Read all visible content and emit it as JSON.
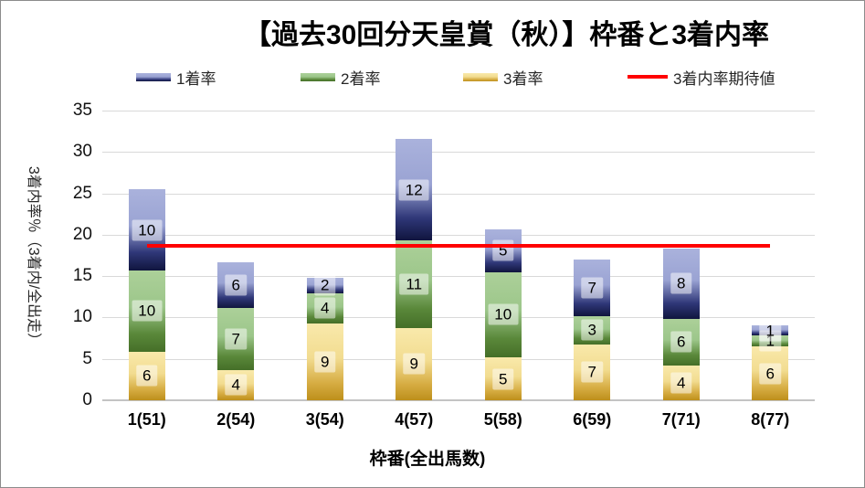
{
  "chart_data": {
    "type": "bar",
    "subtype": "stacked-bar-with-line",
    "title": "【過去30回分天皇賞（秋）】枠番と3着内率",
    "xlabel": "枠番(全出馬数)",
    "ylabel": "3着内率％（3着内/全出走）",
    "ylim": [
      0,
      35
    ],
    "y_ticks": [
      35,
      30,
      25,
      20,
      15,
      10,
      5,
      0
    ],
    "grid": "horizontal",
    "legend_position": "top",
    "categories": [
      "1(51)",
      "2(54)",
      "3(54)",
      "4(57)",
      "5(58)",
      "6(59)",
      "7(71)",
      "8(77)"
    ],
    "series": [
      {
        "name": "3着率",
        "stack_position": "bottom",
        "color_key": "gold",
        "values": [
          5.88,
          3.7,
          9.26,
          8.77,
          5.17,
          6.78,
          4.23,
          6.49
        ],
        "labels": [
          "6",
          "4",
          "9",
          "9",
          "5",
          "7",
          "4",
          "6"
        ]
      },
      {
        "name": "2着率",
        "stack_position": "middle",
        "color_key": "green",
        "values": [
          9.8,
          7.41,
          3.7,
          10.53,
          10.34,
          3.39,
          5.63,
          1.3
        ],
        "labels": [
          "10",
          "7",
          "4",
          "11",
          "10",
          "3",
          "6",
          "1"
        ]
      },
      {
        "name": "1着率",
        "stack_position": "top",
        "color_key": "blue",
        "values": [
          9.8,
          5.56,
          1.85,
          12.28,
          5.17,
          6.78,
          8.45,
          1.3
        ],
        "labels": [
          "10",
          "6",
          "2",
          "12",
          "5",
          "7",
          "8",
          "1"
        ]
      }
    ],
    "line": {
      "name": "3着内率期待値",
      "value": 18.71,
      "color": "#FF0000",
      "spans": "from first category center to last category center"
    },
    "palette": {
      "blue": [
        "#AAB2DC",
        "#9AA3D3",
        "#2F3778",
        "#10153E"
      ],
      "green": [
        "#ACD099",
        "#9CC68A",
        "#5A883A",
        "#456F28"
      ],
      "gold": [
        "#F9E9AB",
        "#F2DC90",
        "#D6AC42",
        "#BD8F1B"
      ],
      "gridline": "#D9D9D9",
      "axis_line": "#C3C3C3",
      "label_box_bg": "rgba(255,255,255,0.5)"
    }
  }
}
